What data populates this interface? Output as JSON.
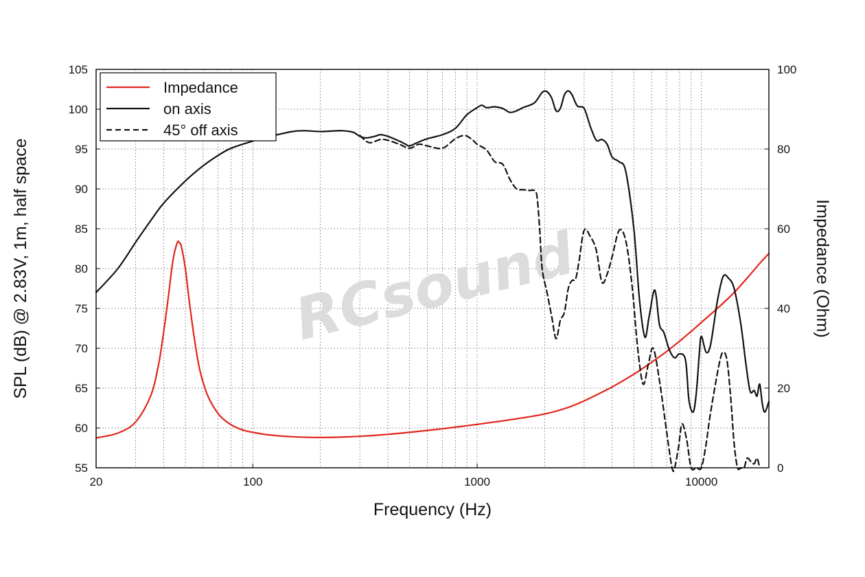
{
  "chart_data": {
    "type": "line",
    "xlabel": "Frequency (Hz)",
    "ylabel_left": "SPL (dB) @ 2.83V, 1m, half space",
    "ylabel_right": "Impedance (Ohm)",
    "x_scale": "log",
    "xlim": [
      20,
      20000
    ],
    "ylim_left": [
      55,
      105
    ],
    "ylim_right": [
      0,
      100
    ],
    "x_ticks": [
      20,
      100,
      1000,
      10000
    ],
    "y_ticks_left": [
      55,
      60,
      65,
      70,
      75,
      80,
      85,
      90,
      95,
      100,
      105
    ],
    "y_ticks_right": [
      0,
      20,
      40,
      60,
      80,
      100
    ],
    "grid": true,
    "legend": {
      "placement": "top-left"
    },
    "watermark": "RCsound",
    "series": [
      {
        "name": "Impedance",
        "axis": "right",
        "color": "#e2231a",
        "style": "solid",
        "points": [
          [
            20,
            7.5
          ],
          [
            25,
            8.7
          ],
          [
            30,
            11.5
          ],
          [
            35,
            18
          ],
          [
            38,
            26
          ],
          [
            40,
            34
          ],
          [
            42,
            43
          ],
          [
            44,
            52
          ],
          [
            46,
            56.5
          ],
          [
            47,
            56.5
          ],
          [
            48,
            55.5
          ],
          [
            50,
            50
          ],
          [
            52,
            42
          ],
          [
            55,
            32
          ],
          [
            58,
            24.5
          ],
          [
            62,
            19
          ],
          [
            66,
            15.8
          ],
          [
            72,
            12.8
          ],
          [
            80,
            10.8
          ],
          [
            90,
            9.5
          ],
          [
            100,
            8.9
          ],
          [
            120,
            8.2
          ],
          [
            150,
            7.8
          ],
          [
            200,
            7.6
          ],
          [
            300,
            7.9
          ],
          [
            400,
            8.4
          ],
          [
            500,
            8.9
          ],
          [
            700,
            9.8
          ],
          [
            1000,
            10.9
          ],
          [
            1500,
            12.3
          ],
          [
            2000,
            13.5
          ],
          [
            2500,
            15
          ],
          [
            3000,
            16.8
          ],
          [
            4000,
            20.3
          ],
          [
            5000,
            23.5
          ],
          [
            6000,
            26.5
          ],
          [
            7000,
            29.2
          ],
          [
            8000,
            31.8
          ],
          [
            9000,
            34.2
          ],
          [
            10000,
            36.5
          ],
          [
            12000,
            40.4
          ],
          [
            14000,
            44
          ],
          [
            16000,
            47.6
          ],
          [
            18000,
            51
          ],
          [
            20000,
            53.8
          ]
        ]
      },
      {
        "name": "on axis",
        "axis": "left",
        "color": "#111111",
        "style": "solid",
        "points": [
          [
            20,
            77
          ],
          [
            25,
            80
          ],
          [
            30,
            83.3
          ],
          [
            35,
            86
          ],
          [
            40,
            88.2
          ],
          [
            50,
            91
          ],
          [
            60,
            92.9
          ],
          [
            70,
            94.2
          ],
          [
            80,
            95.1
          ],
          [
            100,
            96
          ],
          [
            120,
            96.6
          ],
          [
            150,
            97.2
          ],
          [
            170,
            97.3
          ],
          [
            200,
            97.2
          ],
          [
            250,
            97.3
          ],
          [
            280,
            97.1
          ],
          [
            300,
            96.6
          ],
          [
            320,
            96.4
          ],
          [
            350,
            96.6
          ],
          [
            370,
            96.8
          ],
          [
            400,
            96.6
          ],
          [
            450,
            96
          ],
          [
            480,
            95.6
          ],
          [
            500,
            95.4
          ],
          [
            550,
            95.9
          ],
          [
            600,
            96.3
          ],
          [
            700,
            96.8
          ],
          [
            800,
            97.6
          ],
          [
            900,
            99.3
          ],
          [
            1000,
            100.2
          ],
          [
            1050,
            100.5
          ],
          [
            1100,
            100.2
          ],
          [
            1200,
            100.3
          ],
          [
            1300,
            100.1
          ],
          [
            1400,
            99.6
          ],
          [
            1500,
            99.8
          ],
          [
            1600,
            100.2
          ],
          [
            1800,
            100.8
          ],
          [
            1950,
            102.1
          ],
          [
            2050,
            102.2
          ],
          [
            2150,
            101.4
          ],
          [
            2250,
            99.8
          ],
          [
            2350,
            100.1
          ],
          [
            2450,
            101.8
          ],
          [
            2550,
            102.3
          ],
          [
            2650,
            101.8
          ],
          [
            2800,
            100.4
          ],
          [
            3000,
            100.1
          ],
          [
            3200,
            97.8
          ],
          [
            3400,
            96.1
          ],
          [
            3600,
            96.2
          ],
          [
            3800,
            95.6
          ],
          [
            4000,
            94
          ],
          [
            4300,
            93.4
          ],
          [
            4600,
            92.2
          ],
          [
            5000,
            85
          ],
          [
            5300,
            76
          ],
          [
            5600,
            71.4
          ],
          [
            5850,
            74
          ],
          [
            6200,
            77.3
          ],
          [
            6500,
            73
          ],
          [
            6800,
            72
          ],
          [
            7200,
            69.8
          ],
          [
            7600,
            68.8
          ],
          [
            8000,
            69.3
          ],
          [
            8500,
            68.5
          ],
          [
            8800,
            63.5
          ],
          [
            9200,
            62
          ],
          [
            9500,
            64.5
          ],
          [
            9800,
            69.5
          ],
          [
            10000,
            71.5
          ],
          [
            10500,
            69.5
          ],
          [
            11000,
            70.5
          ],
          [
            11800,
            76
          ],
          [
            12500,
            79
          ],
          [
            13200,
            78.8
          ],
          [
            14000,
            77.5
          ],
          [
            15000,
            73
          ],
          [
            15800,
            68
          ],
          [
            16500,
            64.6
          ],
          [
            17200,
            64.7
          ],
          [
            17700,
            64
          ],
          [
            18200,
            65.5
          ],
          [
            18700,
            63
          ],
          [
            19200,
            62
          ],
          [
            20000,
            63.3
          ]
        ]
      },
      {
        "name": "45° off axis",
        "axis": "left",
        "color": "#111111",
        "style": "dashed",
        "points": [
          [
            300,
            96.7
          ],
          [
            330,
            95.8
          ],
          [
            370,
            96.2
          ],
          [
            400,
            96.1
          ],
          [
            450,
            95.6
          ],
          [
            500,
            95.1
          ],
          [
            550,
            95.6
          ],
          [
            600,
            95.4
          ],
          [
            700,
            95.1
          ],
          [
            800,
            96.3
          ],
          [
            880,
            96.7
          ],
          [
            950,
            96.2
          ],
          [
            1000,
            95.6
          ],
          [
            1100,
            94.9
          ],
          [
            1200,
            93.4
          ],
          [
            1300,
            93.1
          ],
          [
            1400,
            91.2
          ],
          [
            1500,
            90
          ],
          [
            1600,
            89.9
          ],
          [
            1700,
            89.8
          ],
          [
            1800,
            89.8
          ],
          [
            1850,
            89
          ],
          [
            1900,
            85
          ],
          [
            1950,
            80
          ],
          [
            2050,
            77
          ],
          [
            2150,
            74
          ],
          [
            2250,
            71.2
          ],
          [
            2350,
            73.5
          ],
          [
            2450,
            74.5
          ],
          [
            2550,
            77.5
          ],
          [
            2650,
            78.5
          ],
          [
            2750,
            78.7
          ],
          [
            2850,
            81
          ],
          [
            3000,
            84.8
          ],
          [
            3200,
            84
          ],
          [
            3400,
            82.3
          ],
          [
            3600,
            78.3
          ],
          [
            3800,
            79.3
          ],
          [
            4000,
            81.5
          ],
          [
            4300,
            84.8
          ],
          [
            4600,
            83.5
          ],
          [
            4900,
            78
          ],
          [
            5200,
            70
          ],
          [
            5500,
            65.5
          ],
          [
            5800,
            68
          ],
          [
            6100,
            70
          ],
          [
            6500,
            66
          ],
          [
            7000,
            59.5
          ],
          [
            7400,
            55
          ],
          [
            7600,
            53.5
          ],
          [
            7900,
            57.5
          ],
          [
            8200,
            60.5
          ],
          [
            8600,
            58.5
          ],
          [
            9000,
            55
          ],
          [
            9500,
            54
          ],
          [
            10000,
            54.3
          ],
          [
            10500,
            58
          ],
          [
            11000,
            62
          ],
          [
            12000,
            68
          ],
          [
            12500,
            69.5
          ],
          [
            13000,
            68.5
          ],
          [
            13500,
            64
          ],
          [
            14000,
            58
          ],
          [
            14500,
            55
          ],
          [
            15000,
            54.5
          ],
          [
            15500,
            55
          ],
          [
            16000,
            56.2
          ],
          [
            16600,
            55.8
          ],
          [
            17200,
            55.5
          ],
          [
            17700,
            56.2
          ],
          [
            18200,
            55
          ]
        ]
      }
    ]
  }
}
